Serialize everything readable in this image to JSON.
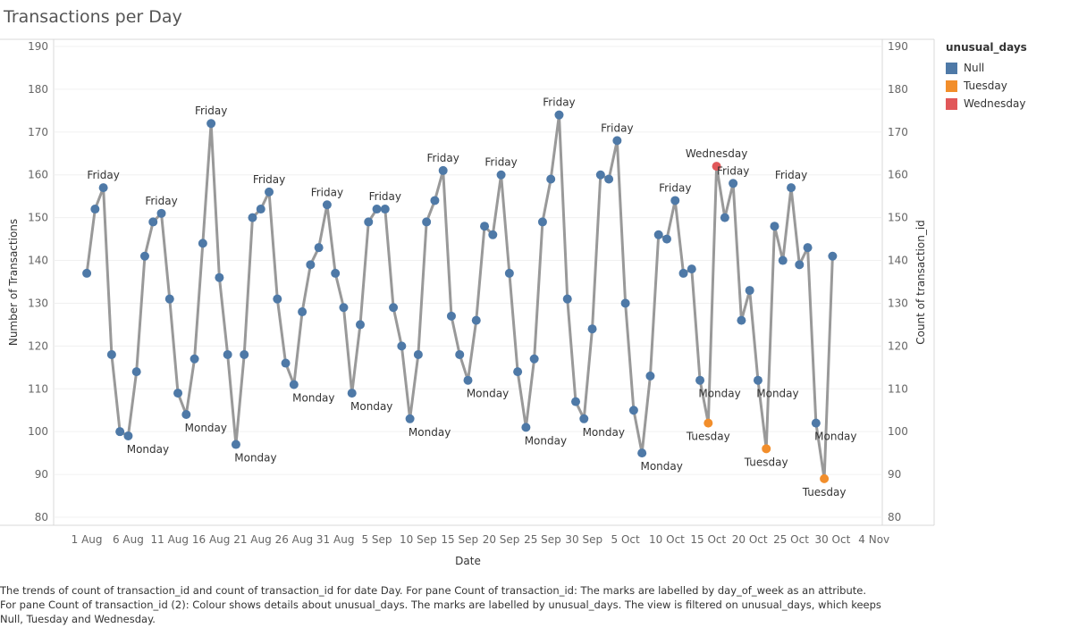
{
  "title": "Transactions per Day",
  "legend": {
    "title": "unusual_days",
    "items": [
      {
        "label": "Null",
        "color": "#4e79a7"
      },
      {
        "label": "Tuesday",
        "color": "#f28e2b"
      },
      {
        "label": "Wednesday",
        "color": "#e15759"
      }
    ]
  },
  "caption": "The trends of count of transaction_id and count of transaction_id for date Day.  For pane Count of transaction_id:  The marks are labelled by day_of_week as an attribute.  For pane Count of transaction_id (2):  Colour shows details about unusual_days.  The marks are labelled by unusual_days. The view is filtered on unusual_days, which keeps Null, Tuesday and Wednesday.",
  "chart_data": {
    "type": "line",
    "xlabel": "Date",
    "ylabel": "Number of Transactions",
    "y2label": "Count of transaction_id",
    "ylim": [
      80,
      190
    ],
    "xlim": [
      "2023-07-28",
      "2023-11-05"
    ],
    "yticks": [
      80,
      90,
      100,
      110,
      120,
      130,
      140,
      150,
      160,
      170,
      180,
      190
    ],
    "xticks": [
      {
        "date": "2023-08-01",
        "label": "1 Aug"
      },
      {
        "date": "2023-08-06",
        "label": "6 Aug"
      },
      {
        "date": "2023-08-11",
        "label": "11 Aug"
      },
      {
        "date": "2023-08-16",
        "label": "16 Aug"
      },
      {
        "date": "2023-08-21",
        "label": "21 Aug"
      },
      {
        "date": "2023-08-26",
        "label": "26 Aug"
      },
      {
        "date": "2023-08-31",
        "label": "31 Aug"
      },
      {
        "date": "2023-09-05",
        "label": "5 Sep"
      },
      {
        "date": "2023-09-10",
        "label": "10 Sep"
      },
      {
        "date": "2023-09-15",
        "label": "15 Sep"
      },
      {
        "date": "2023-09-20",
        "label": "20 Sep"
      },
      {
        "date": "2023-09-25",
        "label": "25 Sep"
      },
      {
        "date": "2023-09-30",
        "label": "30 Sep"
      },
      {
        "date": "2023-10-05",
        "label": "5 Oct"
      },
      {
        "date": "2023-10-10",
        "label": "10 Oct"
      },
      {
        "date": "2023-10-15",
        "label": "15 Oct"
      },
      {
        "date": "2023-10-20",
        "label": "20 Oct"
      },
      {
        "date": "2023-10-25",
        "label": "25 Oct"
      },
      {
        "date": "2023-10-30",
        "label": "30 Oct"
      },
      {
        "date": "2023-11-04",
        "label": "4 Nov"
      }
    ],
    "grid": true,
    "legend_position": "right",
    "line_color": "#999999",
    "series": [
      {
        "name": "Count of transaction_id",
        "points": [
          {
            "x": "2023-08-01",
            "y": 137
          },
          {
            "x": "2023-08-02",
            "y": 152
          },
          {
            "x": "2023-08-03",
            "y": 157,
            "label": "Friday"
          },
          {
            "x": "2023-08-04",
            "y": 118
          },
          {
            "x": "2023-08-05",
            "y": 100
          },
          {
            "x": "2023-08-06",
            "y": 99,
            "label": "Monday"
          },
          {
            "x": "2023-08-07",
            "y": 114
          },
          {
            "x": "2023-08-08",
            "y": 141
          },
          {
            "x": "2023-08-09",
            "y": 149
          },
          {
            "x": "2023-08-10",
            "y": 151,
            "label": "Friday"
          },
          {
            "x": "2023-08-11",
            "y": 131
          },
          {
            "x": "2023-08-12",
            "y": 109
          },
          {
            "x": "2023-08-13",
            "y": 104,
            "label": "Monday"
          },
          {
            "x": "2023-08-14",
            "y": 117
          },
          {
            "x": "2023-08-15",
            "y": 144
          },
          {
            "x": "2023-08-16",
            "y": 172,
            "label": "Friday"
          },
          {
            "x": "2023-08-17",
            "y": 136
          },
          {
            "x": "2023-08-18",
            "y": 118
          },
          {
            "x": "2023-08-19",
            "y": 97,
            "label": "Monday"
          },
          {
            "x": "2023-08-20",
            "y": 118
          },
          {
            "x": "2023-08-21",
            "y": 150
          },
          {
            "x": "2023-08-22",
            "y": 152
          },
          {
            "x": "2023-08-23",
            "y": 156,
            "label": "Friday"
          },
          {
            "x": "2023-08-24",
            "y": 131
          },
          {
            "x": "2023-08-25",
            "y": 116
          },
          {
            "x": "2023-08-26",
            "y": 111,
            "label": "Monday"
          },
          {
            "x": "2023-08-27",
            "y": 128
          },
          {
            "x": "2023-08-28",
            "y": 139
          },
          {
            "x": "2023-08-29",
            "y": 143
          },
          {
            "x": "2023-08-30",
            "y": 153,
            "label": "Friday"
          },
          {
            "x": "2023-08-31",
            "y": 137
          },
          {
            "x": "2023-09-01",
            "y": 129
          },
          {
            "x": "2023-09-02",
            "y": 109,
            "label": "Monday"
          },
          {
            "x": "2023-09-03",
            "y": 125
          },
          {
            "x": "2023-09-04",
            "y": 149
          },
          {
            "x": "2023-09-05",
            "y": 152
          },
          {
            "x": "2023-09-06",
            "y": 152,
            "label": "Friday"
          },
          {
            "x": "2023-09-07",
            "y": 129
          },
          {
            "x": "2023-09-08",
            "y": 120
          },
          {
            "x": "2023-09-09",
            "y": 103,
            "label": "Monday"
          },
          {
            "x": "2023-09-10",
            "y": 118
          },
          {
            "x": "2023-09-11",
            "y": 149
          },
          {
            "x": "2023-09-12",
            "y": 154
          },
          {
            "x": "2023-09-13",
            "y": 161,
            "label": "Friday"
          },
          {
            "x": "2023-09-14",
            "y": 127
          },
          {
            "x": "2023-09-15",
            "y": 118
          },
          {
            "x": "2023-09-16",
            "y": 112,
            "label": "Monday"
          },
          {
            "x": "2023-09-17",
            "y": 126
          },
          {
            "x": "2023-09-18",
            "y": 148
          },
          {
            "x": "2023-09-19",
            "y": 146
          },
          {
            "x": "2023-09-20",
            "y": 160,
            "label": "Friday"
          },
          {
            "x": "2023-09-21",
            "y": 137
          },
          {
            "x": "2023-09-22",
            "y": 114
          },
          {
            "x": "2023-09-23",
            "y": 101,
            "label": "Monday"
          },
          {
            "x": "2023-09-24",
            "y": 117
          },
          {
            "x": "2023-09-25",
            "y": 149
          },
          {
            "x": "2023-09-26",
            "y": 159
          },
          {
            "x": "2023-09-27",
            "y": 174,
            "label": "Friday"
          },
          {
            "x": "2023-09-28",
            "y": 131
          },
          {
            "x": "2023-09-29",
            "y": 107
          },
          {
            "x": "2023-09-30",
            "y": 103,
            "label": "Monday"
          },
          {
            "x": "2023-10-01",
            "y": 124
          },
          {
            "x": "2023-10-02",
            "y": 160
          },
          {
            "x": "2023-10-03",
            "y": 159
          },
          {
            "x": "2023-10-04",
            "y": 168,
            "label": "Friday"
          },
          {
            "x": "2023-10-05",
            "y": 130
          },
          {
            "x": "2023-10-06",
            "y": 105
          },
          {
            "x": "2023-10-07",
            "y": 95,
            "label": "Monday"
          },
          {
            "x": "2023-10-08",
            "y": 113
          },
          {
            "x": "2023-10-09",
            "y": 146
          },
          {
            "x": "2023-10-10",
            "y": 145
          },
          {
            "x": "2023-10-11",
            "y": 154,
            "label": "Friday"
          },
          {
            "x": "2023-10-12",
            "y": 137
          },
          {
            "x": "2023-10-13",
            "y": 138
          },
          {
            "x": "2023-10-14",
            "y": 112,
            "label": "Monday"
          },
          {
            "x": "2023-10-15",
            "y": 102,
            "label": "Tuesday",
            "category": "Tuesday"
          },
          {
            "x": "2023-10-16",
            "y": 162,
            "label": "Wednesday",
            "category": "Wednesday"
          },
          {
            "x": "2023-10-17",
            "y": 150
          },
          {
            "x": "2023-10-18",
            "y": 158,
            "label": "Friday"
          },
          {
            "x": "2023-10-19",
            "y": 126
          },
          {
            "x": "2023-10-20",
            "y": 133
          },
          {
            "x": "2023-10-21",
            "y": 112,
            "label": "Monday"
          },
          {
            "x": "2023-10-22",
            "y": 96,
            "label": "Tuesday",
            "category": "Tuesday"
          },
          {
            "x": "2023-10-23",
            "y": 148
          },
          {
            "x": "2023-10-24",
            "y": 140
          },
          {
            "x": "2023-10-25",
            "y": 157,
            "label": "Friday"
          },
          {
            "x": "2023-10-26",
            "y": 139
          },
          {
            "x": "2023-10-27",
            "y": 143
          },
          {
            "x": "2023-10-28",
            "y": 102,
            "label": "Monday"
          },
          {
            "x": "2023-10-29",
            "y": 89,
            "label": "Tuesday",
            "category": "Tuesday"
          },
          {
            "x": "2023-10-30",
            "y": 141
          }
        ]
      }
    ]
  }
}
